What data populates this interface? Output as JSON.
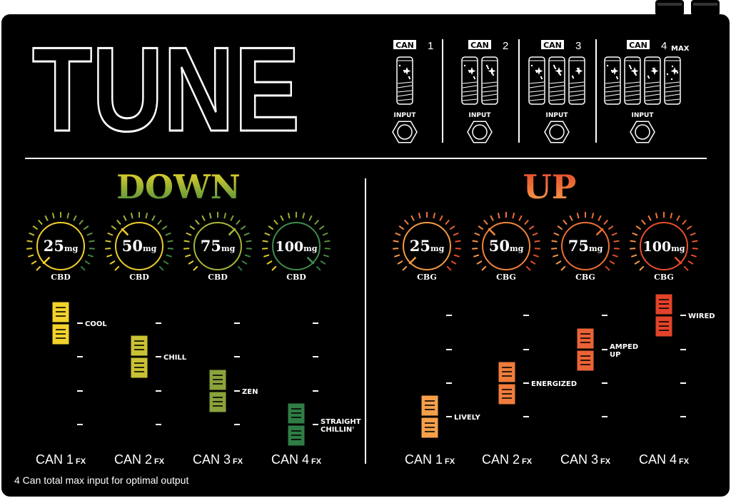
{
  "title": "TUNE",
  "footer_note": "4 Can total max input for optimal output",
  "inputs": [
    {
      "badge": "CAN",
      "number": "1",
      "suffix": "",
      "cans": 1,
      "input_label": "INPUT"
    },
    {
      "badge": "CAN",
      "number": "2",
      "suffix": "",
      "cans": 2,
      "input_label": "INPUT"
    },
    {
      "badge": "CAN",
      "number": "3",
      "suffix": "",
      "cans": 3,
      "input_label": "INPUT"
    },
    {
      "badge": "CAN",
      "number": "4",
      "suffix": "MAX",
      "cans": 4,
      "input_label": "INPUT"
    }
  ],
  "sections": [
    {
      "title": "DOWN",
      "colors": {
        "start": "#f7d72a",
        "end": "#2f7d45"
      },
      "knobs": [
        {
          "value": "25",
          "unit": "mg",
          "label": "CBD",
          "ring_color": "#f2d12a"
        },
        {
          "value": "50",
          "unit": "mg",
          "label": "CBD",
          "ring_color": "#eccd2c"
        },
        {
          "value": "75",
          "unit": "mg",
          "label": "CBD",
          "ring_color": "#a9b53a"
        },
        {
          "value": "100",
          "unit": "mg",
          "label": "CBD",
          "ring_color": "#3f8c4c"
        }
      ],
      "faders": [
        {
          "name": "CAN 1",
          "suffix": "FX",
          "level": 4,
          "label": "COOL",
          "cap_color": "#f3d22c"
        },
        {
          "name": "CAN 2",
          "suffix": "FX",
          "level": 3,
          "label": "CHILL",
          "cap_color": "#c9c234"
        },
        {
          "name": "CAN 3",
          "suffix": "FX",
          "level": 2,
          "label": "ZEN",
          "cap_color": "#8aa33c"
        },
        {
          "name": "CAN 4",
          "suffix": "FX",
          "level": 1,
          "label": "STRAIGHT CHILLIN'",
          "cap_color": "#2f7d45"
        }
      ]
    },
    {
      "title": "UP",
      "colors": {
        "start": "#f9a24a",
        "end": "#e2432a"
      },
      "knobs": [
        {
          "value": "25",
          "unit": "mg",
          "label": "CBG",
          "ring_color": "#f59a42"
        },
        {
          "value": "50",
          "unit": "mg",
          "label": "CBG",
          "ring_color": "#f3843a"
        },
        {
          "value": "75",
          "unit": "mg",
          "label": "CBG",
          "ring_color": "#ef6e34"
        },
        {
          "value": "100",
          "unit": "mg",
          "label": "CBG",
          "ring_color": "#e84e2c"
        }
      ],
      "faders": [
        {
          "name": "CAN 1",
          "suffix": "FX",
          "level": 1,
          "label": "LIVELY",
          "cap_color": "#f6a04a"
        },
        {
          "name": "CAN 2",
          "suffix": "FX",
          "level": 2,
          "label": "ENERGIZED",
          "cap_color": "#f07c3c"
        },
        {
          "name": "CAN 3",
          "suffix": "FX",
          "level": 3,
          "label": "AMPED UP",
          "cap_color": "#ea6336"
        },
        {
          "name": "CAN 4",
          "suffix": "FX",
          "level": 4,
          "label": "WIRED",
          "cap_color": "#e2432a"
        }
      ]
    }
  ]
}
